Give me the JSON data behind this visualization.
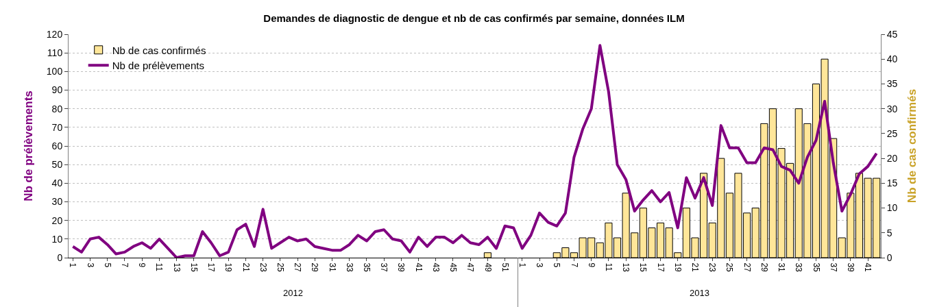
{
  "chart_data": {
    "type": "bar",
    "title": "Demandes de diagnostic de dengue et nb de cas confirmés par semaine, données ILM",
    "ylabel": "Nb de prélèvements",
    "y2label": "Nb de cas confirmés",
    "categories": [
      "1",
      null,
      "3",
      null,
      "5",
      null,
      "7",
      null,
      "9",
      null,
      "11",
      null,
      "13",
      null,
      "15",
      null,
      "17",
      null,
      "19",
      null,
      "21",
      null,
      "23",
      null,
      "25",
      null,
      "27",
      null,
      "29",
      null,
      "31",
      null,
      "33",
      null,
      "35",
      null,
      "37",
      null,
      "39",
      null,
      "41",
      null,
      "43",
      null,
      "45",
      null,
      "47",
      null,
      "49",
      null,
      "51",
      null,
      "1",
      null,
      "3",
      null,
      "5",
      null,
      "7",
      null,
      "9",
      null,
      "11",
      null,
      "13",
      null,
      "15",
      null,
      "17",
      null,
      "19",
      null,
      "21",
      null,
      "23",
      null,
      "25",
      null,
      "27",
      null,
      "29",
      null,
      "31",
      null,
      "33",
      null,
      "35",
      null,
      "37",
      null,
      "39",
      null,
      "41",
      null
    ],
    "series": [
      {
        "name": "Nb de cas confirmés",
        "axis": "y2",
        "color": "#ffe699",
        "values": [
          null,
          null,
          null,
          null,
          null,
          null,
          null,
          null,
          null,
          null,
          null,
          null,
          null,
          null,
          null,
          null,
          null,
          null,
          null,
          null,
          null,
          null,
          null,
          null,
          null,
          null,
          null,
          null,
          null,
          null,
          null,
          null,
          null,
          null,
          null,
          null,
          null,
          null,
          null,
          null,
          null,
          null,
          null,
          null,
          null,
          null,
          null,
          null,
          1,
          null,
          null,
          null,
          null,
          null,
          null,
          null,
          1,
          2,
          1,
          4,
          4,
          3,
          7,
          4,
          13,
          5,
          10,
          6,
          7,
          6,
          1,
          10,
          4,
          17,
          7,
          20,
          13,
          17,
          9,
          10,
          27,
          30,
          22,
          19,
          30,
          27,
          35,
          40,
          24,
          4,
          13,
          17,
          16,
          16
        ]
      },
      {
        "name": "Nb de prélèvements",
        "type": "line",
        "axis": "y",
        "color": "#800080",
        "values": [
          6,
          3,
          10,
          11,
          7,
          2,
          3,
          6,
          8,
          5,
          10,
          5,
          0,
          1,
          1,
          14,
          8,
          1,
          3,
          15,
          18,
          6,
          26,
          5,
          8,
          11,
          9,
          10,
          6,
          5,
          4,
          4,
          7,
          12,
          9,
          14,
          15,
          10,
          9,
          3,
          11,
          6,
          11,
          11,
          8,
          12,
          8,
          7,
          11,
          5,
          17,
          16,
          5,
          12,
          24,
          19,
          17,
          24,
          54,
          69,
          80,
          114,
          89,
          50,
          42,
          25,
          31,
          36,
          30,
          35,
          16,
          43,
          32,
          43,
          28,
          71,
          59,
          59,
          51,
          51,
          59,
          58,
          49,
          47,
          40,
          54,
          63,
          84,
          51,
          25,
          34,
          45,
          49,
          56
        ]
      }
    ],
    "ylim": [
      0,
      120
    ],
    "yticks": [
      0,
      10,
      20,
      30,
      40,
      50,
      60,
      70,
      80,
      90,
      100,
      110,
      120
    ],
    "y2lim": [
      0,
      45
    ],
    "y2ticks": [
      0,
      5,
      10,
      15,
      20,
      25,
      30,
      35,
      40,
      45
    ],
    "grid": "y",
    "legend": "top left",
    "annotations": [
      "2012",
      "2013"
    ]
  }
}
